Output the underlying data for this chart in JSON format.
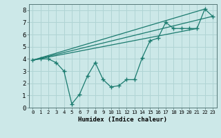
{
  "xlabel": "Humidex (Indice chaleur)",
  "ylabel": "",
  "bg_color": "#cce8e8",
  "grid_color": "#b0d4d4",
  "line_color": "#1a7a6e",
  "xlim": [
    -0.5,
    23.5
  ],
  "ylim": [
    0,
    8.5
  ],
  "xtick_labels": [
    "0",
    "1",
    "2",
    "3",
    "4",
    "5",
    "6",
    "7",
    "8",
    "9",
    "10",
    "11",
    "12",
    "13",
    "14",
    "15",
    "16",
    "17",
    "18",
    "19",
    "20",
    "21",
    "22",
    "23"
  ],
  "ytick_values": [
    0,
    1,
    2,
    3,
    4,
    5,
    6,
    7,
    8
  ],
  "series": [
    [
      0,
      3.9
    ],
    [
      1,
      4.0
    ],
    [
      2,
      4.0
    ],
    [
      3,
      3.7
    ],
    [
      4,
      3.0
    ],
    [
      5,
      0.3
    ],
    [
      6,
      1.1
    ],
    [
      7,
      2.6
    ],
    [
      8,
      3.7
    ],
    [
      9,
      2.3
    ],
    [
      10,
      1.7
    ],
    [
      11,
      1.8
    ],
    [
      12,
      2.3
    ],
    [
      13,
      2.3
    ],
    [
      14,
      4.1
    ],
    [
      15,
      5.5
    ],
    [
      16,
      5.7
    ],
    [
      17,
      7.0
    ],
    [
      18,
      6.5
    ],
    [
      19,
      6.5
    ],
    [
      20,
      6.5
    ],
    [
      21,
      6.5
    ],
    [
      22,
      8.1
    ],
    [
      23,
      7.5
    ]
  ],
  "line1": [
    [
      0,
      3.9
    ],
    [
      22,
      8.1
    ]
  ],
  "line2": [
    [
      0,
      3.9
    ],
    [
      23,
      7.5
    ]
  ],
  "line3": [
    [
      0,
      3.9
    ],
    [
      21,
      6.5
    ]
  ]
}
